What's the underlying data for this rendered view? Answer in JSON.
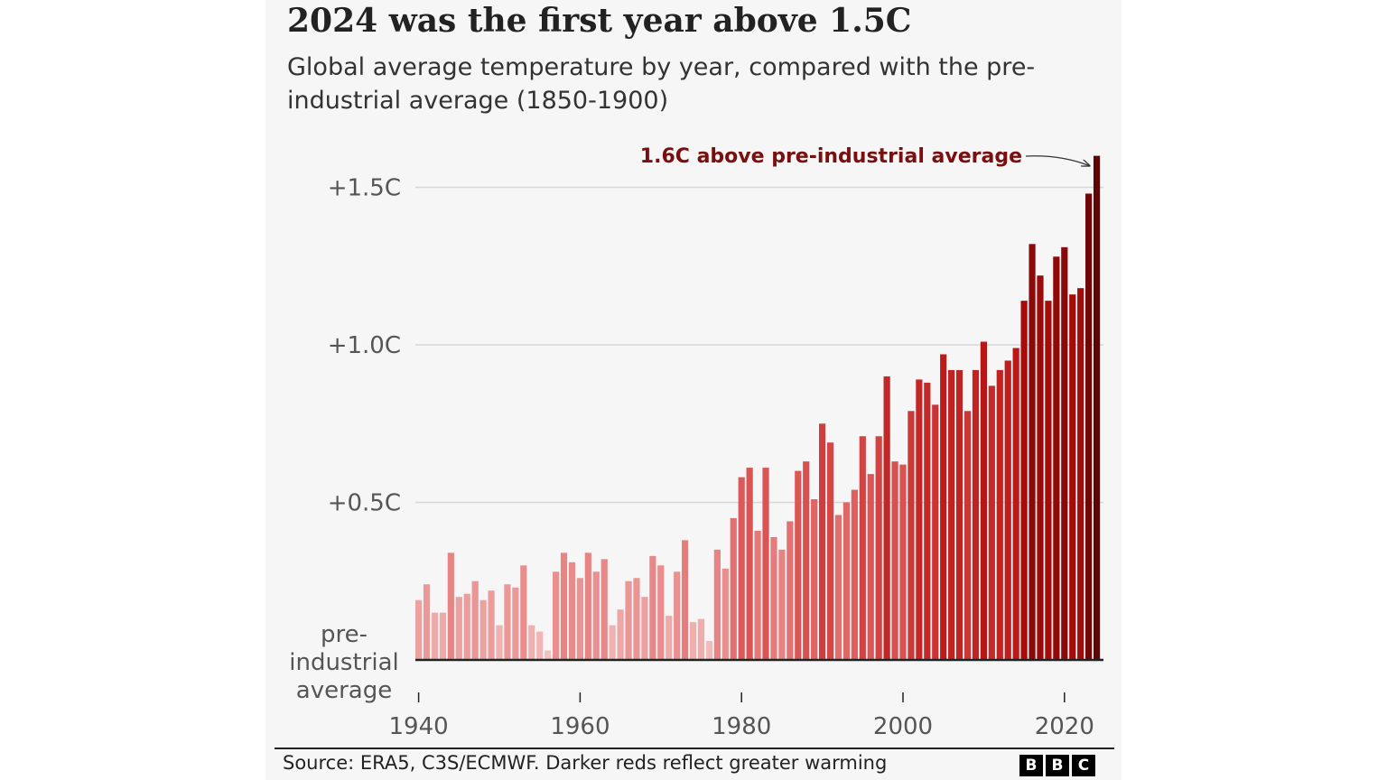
{
  "header": {
    "title": "2024 was the first year above 1.5C",
    "subtitle": "Global average temperature by year, compared with the pre-industrial average (1850-1900)"
  },
  "footer": {
    "source": "Source: ERA5, C3S/ECMWF. Darker reds reflect greater warming",
    "logo_letters": [
      "B",
      "B",
      "C"
    ]
  },
  "chart_data": {
    "type": "bar",
    "title": "2024 was the first year above 1.5C",
    "subtitle": "Global average temperature by year, compared with the pre-industrial average (1850-1900)",
    "x": [
      1940,
      1941,
      1942,
      1943,
      1944,
      1945,
      1946,
      1947,
      1948,
      1949,
      1950,
      1951,
      1952,
      1953,
      1954,
      1955,
      1956,
      1957,
      1958,
      1959,
      1960,
      1961,
      1962,
      1963,
      1964,
      1965,
      1966,
      1967,
      1968,
      1969,
      1970,
      1971,
      1972,
      1973,
      1974,
      1975,
      1976,
      1977,
      1978,
      1979,
      1980,
      1981,
      1982,
      1983,
      1984,
      1985,
      1986,
      1987,
      1988,
      1989,
      1990,
      1991,
      1992,
      1993,
      1994,
      1995,
      1996,
      1997,
      1998,
      1999,
      2000,
      2001,
      2002,
      2003,
      2004,
      2005,
      2006,
      2007,
      2008,
      2009,
      2010,
      2011,
      2012,
      2013,
      2014,
      2015,
      2016,
      2017,
      2018,
      2019,
      2020,
      2021,
      2022,
      2023,
      2024
    ],
    "values": [
      0.19,
      0.24,
      0.15,
      0.15,
      0.34,
      0.2,
      0.21,
      0.25,
      0.19,
      0.22,
      0.11,
      0.24,
      0.23,
      0.3,
      0.11,
      0.09,
      0.03,
      0.28,
      0.34,
      0.31,
      0.26,
      0.34,
      0.28,
      0.32,
      0.11,
      0.16,
      0.25,
      0.26,
      0.2,
      0.33,
      0.3,
      0.14,
      0.28,
      0.38,
      0.12,
      0.13,
      0.06,
      0.35,
      0.29,
      0.45,
      0.58,
      0.61,
      0.41,
      0.61,
      0.39,
      0.35,
      0.44,
      0.6,
      0.63,
      0.51,
      0.75,
      0.69,
      0.46,
      0.5,
      0.54,
      0.71,
      0.59,
      0.71,
      0.9,
      0.63,
      0.62,
      0.79,
      0.89,
      0.88,
      0.81,
      0.97,
      0.92,
      0.92,
      0.79,
      0.92,
      1.01,
      0.87,
      0.92,
      0.95,
      0.99,
      1.14,
      1.32,
      1.22,
      1.14,
      1.28,
      1.31,
      1.16,
      1.18,
      1.48,
      1.6
    ],
    "y_ticks": [
      {
        "value": 1.5,
        "label": "+1.5C"
      },
      {
        "value": 1.0,
        "label": "+1.0C"
      },
      {
        "value": 0.5,
        "label": "+0.5C"
      }
    ],
    "baseline_label": [
      "pre-",
      "industrial",
      "average"
    ],
    "x_ticks": [
      1940,
      1960,
      1980,
      2000,
      2020
    ],
    "ylim": [
      0,
      1.6
    ],
    "grid": true,
    "annotation": {
      "text": "1.6C above pre-industrial average",
      "x": 2024,
      "value": 1.6
    },
    "colors": {
      "text": "#222222",
      "axis_label": "#555555",
      "grid": "#d7d7d7",
      "annotation": "#7a0f0f",
      "bar_light": "#f4c6c6",
      "bar_mid": "#e06060",
      "bar_dark": "#b50c0c",
      "bar_darkest": "#5c0606",
      "background": "#f6f6f6"
    }
  }
}
